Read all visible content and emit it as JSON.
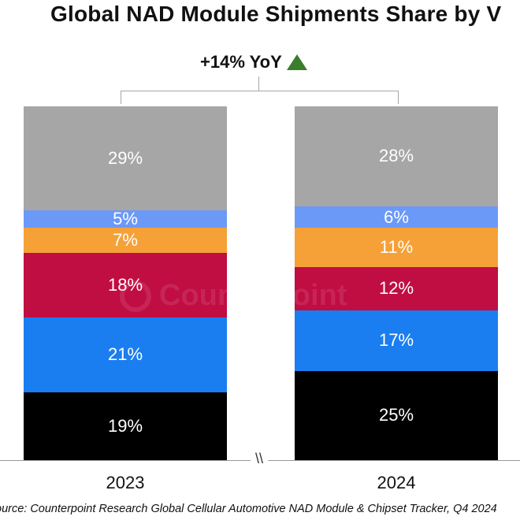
{
  "title": "Global NAD Module Shipments Share by V",
  "annotation": {
    "yoy_text": "+14% YoY",
    "icon": "up-triangle-icon",
    "icon_color": "#3a7d2a"
  },
  "axis_break_symbol": "\\\\",
  "source": "ource: Counterpoint Research Global Cellular Automotive NAD Module & Chipset Tracker, Q4 2024",
  "watermark": "Counterpoint",
  "chart_data": {
    "type": "bar",
    "stacked": true,
    "percent": true,
    "categories": [
      "2023",
      "2024"
    ],
    "series": [
      {
        "color": "#000000",
        "values": [
          19,
          25
        ],
        "labels": [
          "19%",
          "25%"
        ]
      },
      {
        "color": "#1a7ef0",
        "values": [
          21,
          17
        ],
        "labels": [
          "21%",
          "17%"
        ]
      },
      {
        "color": "#c00d42",
        "values": [
          18,
          12
        ],
        "labels": [
          "18%",
          "12%"
        ]
      },
      {
        "color": "#f5a138",
        "values": [
          7,
          11
        ],
        "labels": [
          "7%",
          "11%"
        ]
      },
      {
        "color": "#6b99f8",
        "values": [
          5,
          6
        ],
        "labels": [
          "5%",
          "6%"
        ]
      },
      {
        "color": "#a6a6a6",
        "values": [
          29,
          28
        ],
        "labels": [
          "29%",
          "28%"
        ]
      }
    ],
    "ylim": [
      0,
      100
    ],
    "grid": false,
    "legend": "none"
  }
}
